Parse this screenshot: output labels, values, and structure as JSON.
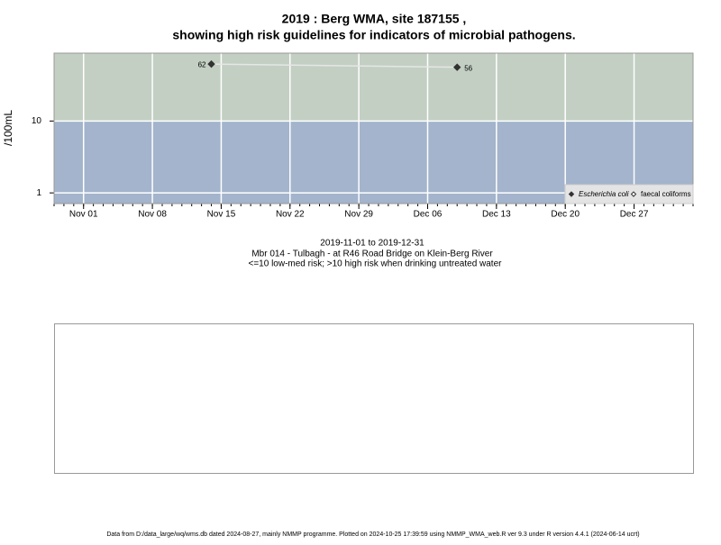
{
  "chart_data": {
    "type": "line",
    "title": "2019 : Berg WMA, site 187155 ,",
    "title_line2": "showing high risk guidelines for indicators of microbial pathogens.",
    "ylabel": "/100mL",
    "subtitle_lines": [
      "2019-11-01 to 2019-12-31",
      "Mbr 014 - Tulbagh - at R46 Road Bridge on Klein-Berg River",
      "<=10 low-med risk; >10 high risk when drinking untreated water"
    ],
    "footer": "Data from D:/data_large/wq/wms.db dated 2024-08-27, mainly NMMP programme. Plotted on 2024-10-25 17:39:59 using NMMP_WMA_web.R ver 9.3 under R version 4.4.1 (2024-06-14 ucrt)",
    "x": [
      "2019-11-14",
      "2019-12-09"
    ],
    "series": [
      {
        "name": "Escherichia coli",
        "color": "#333333",
        "values": [
          62,
          56
        ]
      },
      {
        "name": "faecal coliforms",
        "color": "#333333",
        "values": [
          null,
          null
        ]
      }
    ],
    "log_y": true,
    "ylim": [
      0.71,
      88
    ],
    "yticks": [
      1,
      10
    ],
    "threshold": 10,
    "above_color": "#c3cfc3",
    "below_color": "#a3b4cc",
    "grid": true,
    "xlim": [
      "2019-10-29",
      "2020-01-02"
    ],
    "xticks": [
      {
        "value": "2019-11-01",
        "label": "Nov 01"
      },
      {
        "value": "2019-11-08",
        "label": "Nov 08"
      },
      {
        "value": "2019-11-15",
        "label": "Nov 15"
      },
      {
        "value": "2019-11-22",
        "label": "Nov 22"
      },
      {
        "value": "2019-11-29",
        "label": "Nov 29"
      },
      {
        "value": "2019-12-06",
        "label": "Dec 06"
      },
      {
        "value": "2019-12-13",
        "label": "Dec 13"
      },
      {
        "value": "2019-12-20",
        "label": "Dec 20"
      },
      {
        "value": "2019-12-27",
        "label": "Dec 27"
      }
    ],
    "legend_position": "bottom-right"
  }
}
